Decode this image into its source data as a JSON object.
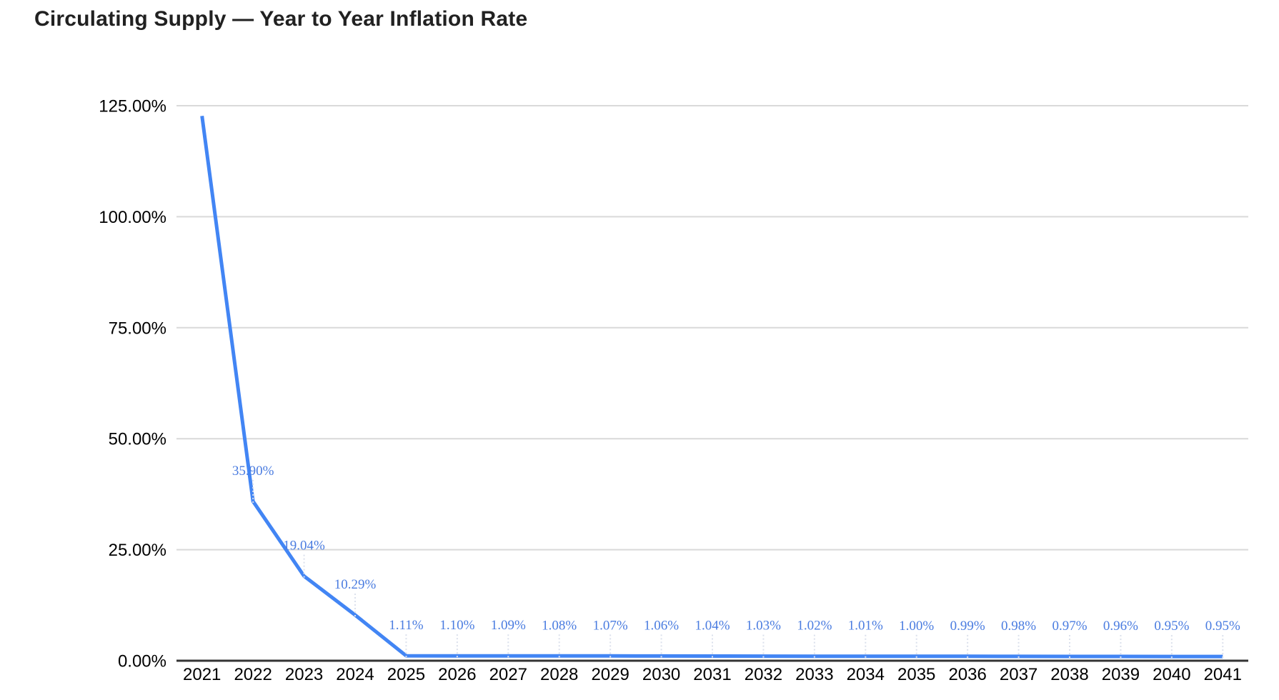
{
  "title": "Circulating Supply — Year to Year Inflation Rate",
  "colors": {
    "background": "#ffffff",
    "title_text": "#212121",
    "series_line": "#4285f4",
    "data_label": "#4a7ce0",
    "gridline": "#d9d9d9",
    "axis_line": "#333333",
    "axis_label": "#000000",
    "leader_line": "#dbe0ec"
  },
  "chart_data": {
    "type": "line",
    "title": "Circulating Supply — Year to Year Inflation Rate",
    "xlabel": "",
    "ylabel": "",
    "categories": [
      "2021",
      "2022",
      "2023",
      "2024",
      "2025",
      "2026",
      "2027",
      "2028",
      "2029",
      "2030",
      "2031",
      "2032",
      "2033",
      "2034",
      "2035",
      "2036",
      "2037",
      "2038",
      "2039",
      "2040",
      "2041"
    ],
    "values": [
      122.7,
      35.9,
      19.04,
      10.29,
      1.11,
      1.1,
      1.09,
      1.08,
      1.07,
      1.06,
      1.04,
      1.03,
      1.02,
      1.01,
      1.0,
      0.99,
      0.98,
      0.97,
      0.96,
      0.95,
      0.95
    ],
    "point_labels": [
      "",
      "35.90%",
      "19.04%",
      "10.29%",
      "1.11%",
      "1.10%",
      "1.09%",
      "1.08%",
      "1.07%",
      "1.06%",
      "1.04%",
      "1.03%",
      "1.02%",
      "1.01%",
      "1.00%",
      "0.99%",
      "0.98%",
      "0.97%",
      "0.96%",
      "0.95%",
      "0.95%"
    ],
    "y_tick_values": [
      0,
      25,
      50,
      75,
      100,
      125
    ],
    "y_tick_labels": [
      "0.00%",
      "25.00%",
      "50.00%",
      "75.00%",
      "100.00%",
      "125.00%"
    ],
    "ylim": [
      0,
      125
    ],
    "grid": "horizontal",
    "legend_position": "none"
  }
}
